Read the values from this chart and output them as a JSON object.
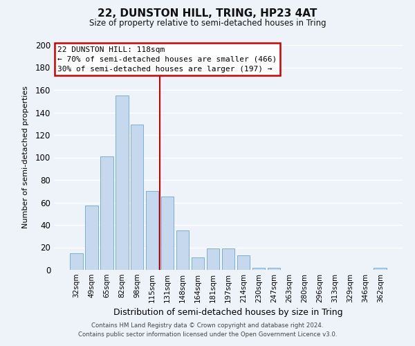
{
  "title": "22, DUNSTON HILL, TRING, HP23 4AT",
  "subtitle": "Size of property relative to semi-detached houses in Tring",
  "xlabel": "Distribution of semi-detached houses by size in Tring",
  "ylabel": "Number of semi-detached properties",
  "bar_labels": [
    "32sqm",
    "49sqm",
    "65sqm",
    "82sqm",
    "98sqm",
    "115sqm",
    "131sqm",
    "148sqm",
    "164sqm",
    "181sqm",
    "197sqm",
    "214sqm",
    "230sqm",
    "247sqm",
    "263sqm",
    "280sqm",
    "296sqm",
    "313sqm",
    "329sqm",
    "346sqm",
    "362sqm"
  ],
  "bar_values": [
    15,
    57,
    101,
    155,
    129,
    70,
    65,
    35,
    11,
    19,
    19,
    13,
    2,
    2,
    0,
    0,
    0,
    0,
    0,
    0,
    2
  ],
  "bar_color": "#c5d8ee",
  "bar_edge_color": "#7aafd4",
  "highlight_line_color": "#cc0000",
  "annotation_title": "22 DUNSTON HILL: 118sqm",
  "annotation_line1": "← 70% of semi-detached houses are smaller (466)",
  "annotation_line2": "30% of semi-detached houses are larger (197) →",
  "annotation_box_color": "#ffffff",
  "annotation_box_edge": "#cc0000",
  "ylim": [
    0,
    200
  ],
  "yticks": [
    0,
    20,
    40,
    60,
    80,
    100,
    120,
    140,
    160,
    180,
    200
  ],
  "footer_line1": "Contains HM Land Registry data © Crown copyright and database right 2024.",
  "footer_line2": "Contains public sector information licensed under the Open Government Licence v3.0.",
  "background_color": "#eef2f9",
  "grid_color": "#ffffff",
  "figsize": [
    6.0,
    5.0
  ],
  "dpi": 100
}
